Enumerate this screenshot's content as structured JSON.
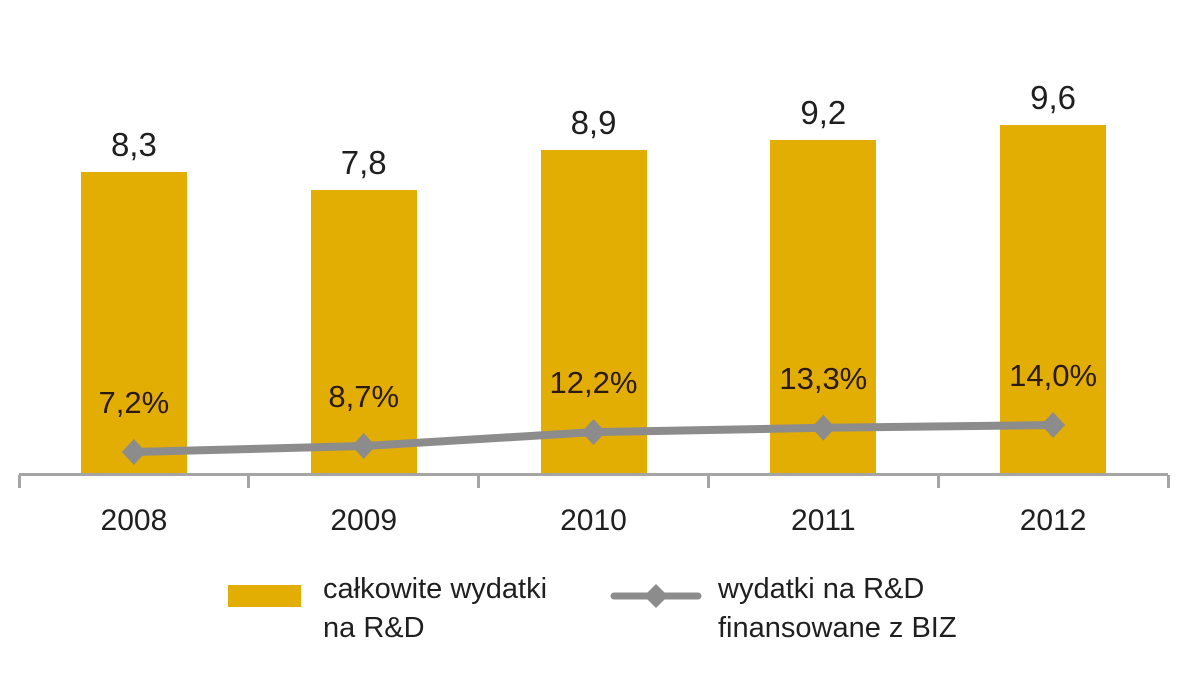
{
  "background_color": "#ffffff",
  "chart_data": {
    "type": "bar",
    "subtype": "bar-line-combo",
    "title": "",
    "xlabel": "",
    "ylabel": "",
    "grid": false,
    "legend_position": "bottom",
    "categories": [
      "2008",
      "2009",
      "2010",
      "2011",
      "2012"
    ],
    "series": [
      {
        "name": "całkowite wydatki na R&D",
        "type": "bar",
        "values": [
          8.3,
          7.8,
          8.9,
          9.2,
          9.6
        ],
        "labels": [
          "8,3",
          "7,8",
          "8,9",
          "9,2",
          "9,6"
        ],
        "color": "#e2ae04"
      },
      {
        "name": "wydatki na R&D finansowane z BIZ",
        "type": "line",
        "marker": "diamond",
        "values": [
          7.2,
          8.7,
          12.2,
          13.3,
          14.0
        ],
        "labels": [
          "7,2%",
          "8,7%",
          "12,2%",
          "13,3%",
          "14,0%"
        ],
        "color": "#8c8c8c"
      }
    ],
    "bar_axis_range": [
      0,
      10.5
    ],
    "axis_color": "#a5a5a5",
    "text_color": "#1f1f1f"
  },
  "legend": {
    "items": [
      {
        "marker": "bar-swatch",
        "color": "#e2ae04",
        "line1": "całkowite wydatki",
        "line2": "na R&D"
      },
      {
        "marker": "line-diamond",
        "color": "#8c8c8c",
        "line1": "wydatki na R&D",
        "line2": "finansowane z BIZ"
      }
    ]
  }
}
